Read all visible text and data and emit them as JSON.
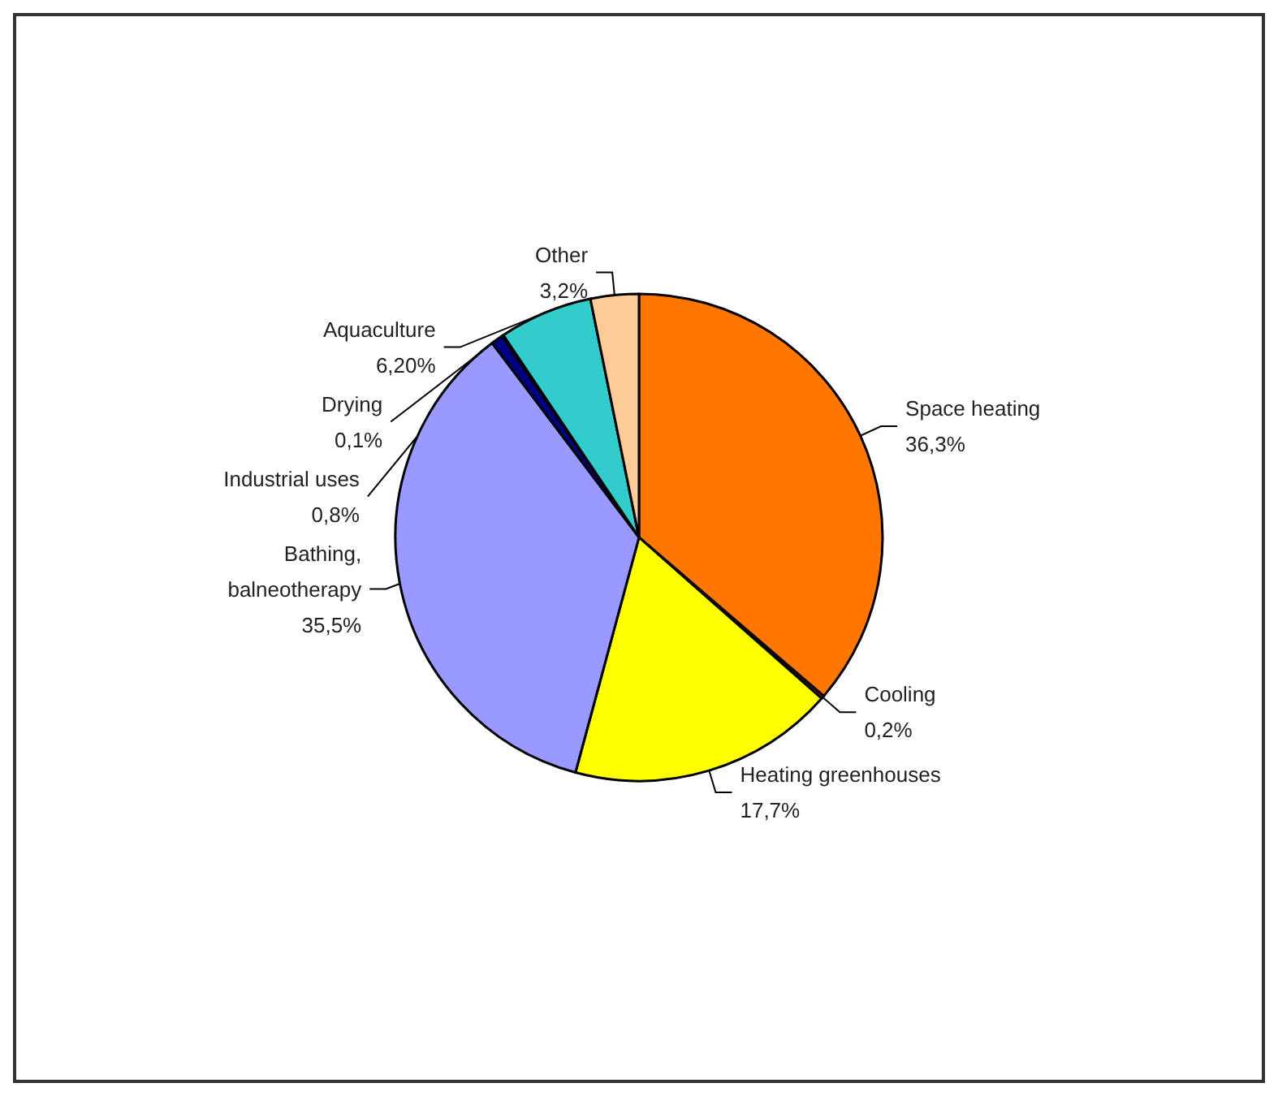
{
  "chart_data": {
    "type": "pie",
    "categories": [
      "Space heating",
      "Cooling",
      "Heating greenhouses",
      "Bathing, balneotherapy",
      "Industrial uses",
      "Drying",
      "Aquaculture",
      "Other"
    ],
    "values": [
      36.3,
      0.2,
      17.7,
      35.5,
      0.8,
      0.1,
      6.2,
      3.2
    ],
    "value_labels": [
      "36,3%",
      "0,2%",
      "17,7%",
      "35,5%",
      "0,8%",
      "0,1%",
      "6,20%",
      "3,2%"
    ],
    "colors": [
      "#ff7700",
      "#993300",
      "#ffff00",
      "#9999ff",
      "#000080",
      "#333333",
      "#33cccc",
      "#ffcc99"
    ],
    "legend": false
  }
}
